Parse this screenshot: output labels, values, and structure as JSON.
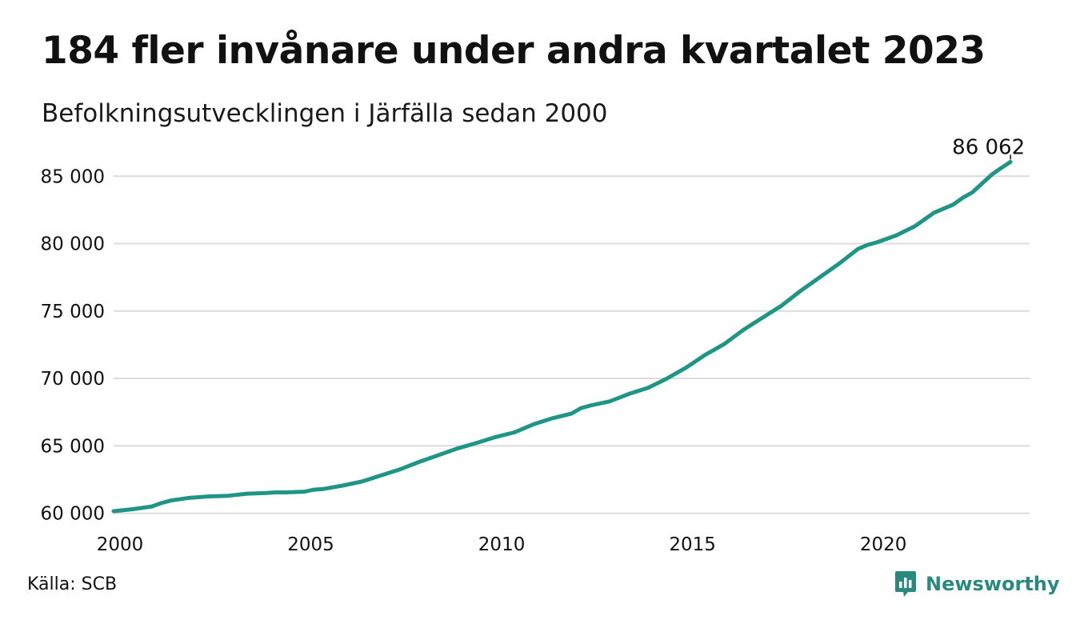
{
  "title": "184 fler invånare under andra kvartalet 2023",
  "subtitle": "Befolkningsutvecklingen i Järfälla sedan 2000",
  "source": "Källa: SCB",
  "brand": "Newsworthy",
  "brand_icon": "newsworthy-logo-icon",
  "colors": {
    "line": "#1f9585",
    "grid": "#dcdcdc",
    "brand": "#2a8a80",
    "text": "#111111"
  },
  "chart_data": {
    "type": "line",
    "title": "184 fler invånare under andra kvartalet 2023",
    "subtitle": "Befolkningsutvecklingen i Järfälla sedan 2000",
    "xlabel": "",
    "ylabel": "",
    "xlim": [
      2000,
      2024
    ],
    "ylim": [
      59500,
      86500
    ],
    "grid": true,
    "x_ticks": [
      2000,
      2005,
      2010,
      2015,
      2020
    ],
    "x_tick_labels": [
      "2000",
      "2005",
      "2010",
      "2015",
      "2020"
    ],
    "y_ticks": [
      60000,
      65000,
      70000,
      75000,
      80000,
      85000
    ],
    "y_tick_labels": [
      "60 000",
      "65 000",
      "70 000",
      "75 000",
      "80 000",
      "85 000"
    ],
    "end_label": "86 062",
    "series": [
      {
        "x": [
          2000.0,
          2000.5,
          2001.0,
          2001.25,
          2001.5,
          2002.0,
          2002.5,
          2003.0,
          2003.5,
          2004.0,
          2004.25,
          2004.5,
          2005.0,
          2005.25,
          2005.5,
          2006.0,
          2006.5,
          2007.0,
          2007.5,
          2008.0,
          2008.5,
          2009.0,
          2009.5,
          2010.0,
          2010.5,
          2011.0,
          2011.5,
          2012.0,
          2012.25,
          2012.5,
          2013.0,
          2013.5,
          2014.0,
          2014.5,
          2015.0,
          2015.5,
          2016.0,
          2016.5,
          2017.0,
          2017.5,
          2018.0,
          2018.5,
          2019.0,
          2019.5,
          2019.75,
          2020.0,
          2020.5,
          2021.0,
          2021.5,
          2022.0,
          2022.25,
          2022.5,
          2023.0,
          2023.25,
          2023.5
        ],
        "y": [
          60150,
          60300,
          60500,
          60750,
          60950,
          61150,
          61250,
          61300,
          61450,
          61500,
          61550,
          61550,
          61600,
          61750,
          61800,
          62050,
          62350,
          62800,
          63250,
          63800,
          64300,
          64800,
          65200,
          65650,
          66000,
          66600,
          67050,
          67400,
          67800,
          68000,
          68300,
          68850,
          69300,
          70000,
          70800,
          71750,
          72550,
          73600,
          74500,
          75400,
          76500,
          77500,
          78500,
          79600,
          79900,
          80100,
          80600,
          81300,
          82300,
          82900,
          83400,
          83800,
          85100,
          85600,
          86062
        ]
      }
    ]
  }
}
